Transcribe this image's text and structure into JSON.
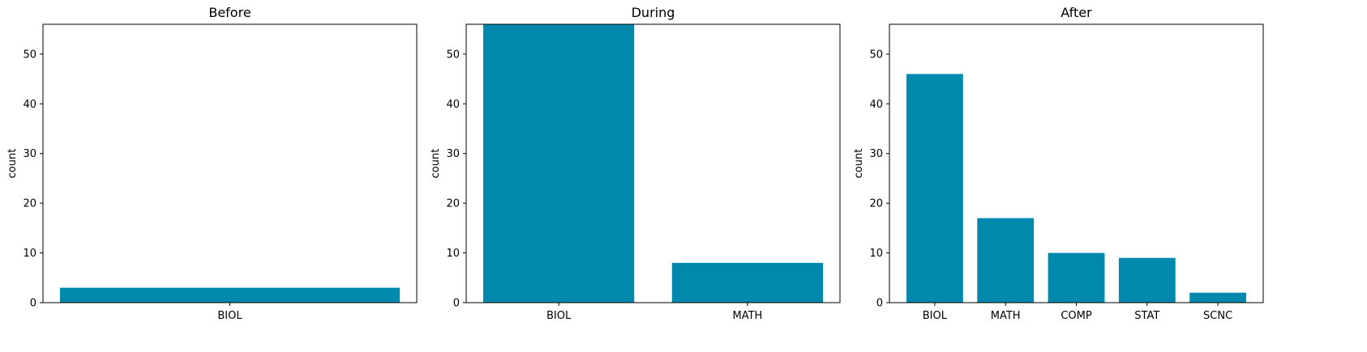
{
  "colors": {
    "bar": "#0088ad",
    "axis": "#000000",
    "background": "#ffffff"
  },
  "chart_data": [
    {
      "type": "bar",
      "title": "Before",
      "xlabel": "",
      "ylabel": "count",
      "ylim": [
        0,
        56
      ],
      "yticks": [
        0,
        10,
        20,
        30,
        40,
        50
      ],
      "grid": false,
      "categories": [
        "BIOL"
      ],
      "values": [
        3
      ]
    },
    {
      "type": "bar",
      "title": "During",
      "xlabel": "",
      "ylabel": "count",
      "ylim": [
        0,
        56
      ],
      "yticks": [
        0,
        10,
        20,
        30,
        40,
        50
      ],
      "grid": false,
      "categories": [
        "BIOL",
        "MATH"
      ],
      "values": [
        56,
        8
      ]
    },
    {
      "type": "bar",
      "title": "After",
      "xlabel": "",
      "ylabel": "count",
      "ylim": [
        0,
        56
      ],
      "yticks": [
        0,
        10,
        20,
        30,
        40,
        50
      ],
      "grid": false,
      "categories": [
        "BIOL",
        "MATH",
        "COMP",
        "STAT",
        "SCNC"
      ],
      "values": [
        46,
        17,
        10,
        9,
        2
      ]
    }
  ]
}
